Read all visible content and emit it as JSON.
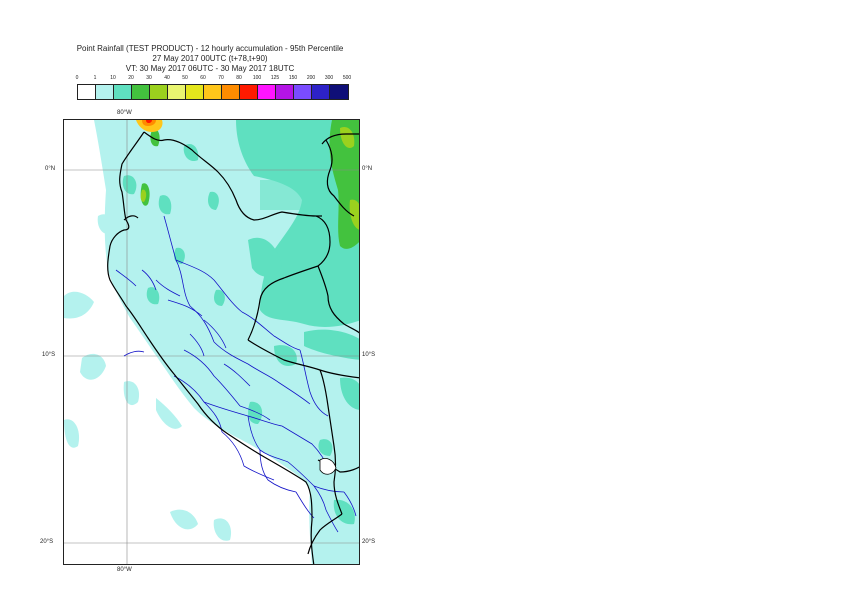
{
  "header": {
    "line1": "Point Rainfall (TEST PRODUCT) - 12 hourly accumulation - 95th Percentile",
    "line2": "27 May 2017 00UTC (t+78,t+90)",
    "line3": "VT: 30 May 2017 06UTC - 30 May 2017 18UTC"
  },
  "legend": {
    "ticks": [
      "0",
      "1",
      "10",
      "20",
      "30",
      "40",
      "50",
      "60",
      "70",
      "80",
      "100",
      "125",
      "150",
      "200",
      "300",
      "500"
    ],
    "colors": [
      "#ffffff",
      "#b4f2ee",
      "#5fe0c0",
      "#43c23e",
      "#9bd11e",
      "#e9f570",
      "#e4e61c",
      "#ffc61a",
      "#ff8c00",
      "#ff1a00",
      "#ff14ff",
      "#b414e6",
      "#7a4cff",
      "#2d22c8",
      "#0f0f78"
    ]
  },
  "map": {
    "lon_labels": {
      "top": "80°W",
      "bottom": "80°W"
    },
    "lat_labels": [
      "0°N",
      "10°S",
      "20°S"
    ],
    "colors": {
      "background": "#b4f2ee",
      "class_10_20": "#5fe0c0",
      "class_20_30": "#43c23e",
      "class_30_40": "#9bd11e",
      "coastline": "#000000",
      "admin_boundaries": "#1414c8",
      "graticule": "#888888"
    }
  }
}
